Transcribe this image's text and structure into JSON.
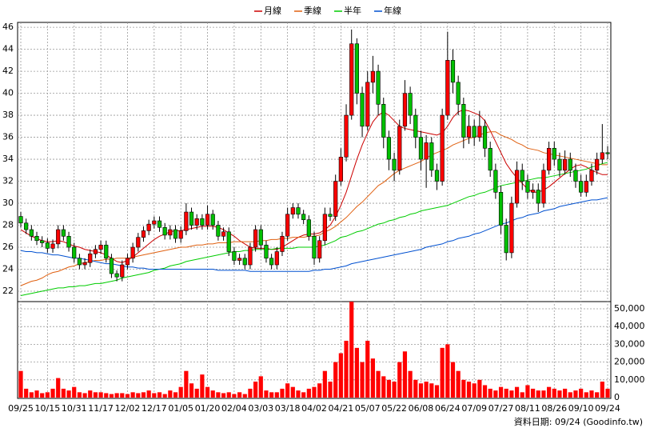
{
  "chart_data": [
    {
      "type": "candlestick",
      "up_color": "#ff0000",
      "down_color": "#00c000",
      "grid": true,
      "legend": "top",
      "ylim": [
        21.2,
        46.3
      ],
      "yticks": [
        22,
        24,
        26,
        28,
        30,
        32,
        34,
        36,
        38,
        40,
        42,
        44,
        46
      ],
      "open": [
        28.8,
        28.2,
        27.6,
        27.0,
        26.6,
        26.4,
        25.9,
        26.3,
        27.6,
        27.0,
        26.0,
        25.0,
        24.4,
        24.6,
        25.4,
        25.8,
        26.2,
        25.0,
        23.6,
        23.3,
        24.4,
        25.0,
        26.0,
        26.9,
        27.5,
        28.1,
        28.4,
        27.8,
        27.1,
        27.6,
        26.8,
        27.5,
        29.2,
        28.0,
        28.6,
        28.0,
        29.0,
        28.0,
        27.0,
        27.4,
        25.6,
        24.8,
        25.0,
        24.4,
        26.0,
        27.6,
        26.2,
        25.0,
        24.4,
        25.6,
        27.0,
        29.0,
        29.6,
        29.0,
        28.5,
        27.0,
        25.0,
        26.6,
        29.0,
        28.8,
        32.0,
        34.2,
        38.0,
        44.5,
        40.0,
        37.0,
        41.0,
        42.0,
        39.0,
        36.0,
        34.0,
        33.0,
        37.0,
        40.0,
        38.0,
        36.0,
        34.0,
        35.5,
        33.0,
        32.0,
        38.0,
        43.0,
        41.0,
        39.0,
        36.0,
        37.0,
        36.0,
        37.0,
        35.0,
        33.0,
        31.0,
        28.0,
        25.5,
        30.0,
        33.0,
        32.0,
        31.0,
        31.2,
        30.0,
        33.0,
        35.0,
        34.0,
        33.0,
        34.0,
        33.0,
        32.0,
        31.0,
        32.0,
        33.0,
        34.0,
        34.6
      ],
      "high": [
        29.2,
        28.6,
        28.0,
        27.4,
        27.0,
        26.8,
        26.7,
        28.0,
        28.0,
        27.4,
        26.4,
        25.4,
        25.0,
        25.8,
        26.2,
        26.6,
        26.6,
        25.4,
        23.9,
        24.8,
        25.4,
        26.4,
        27.3,
        27.9,
        28.5,
        28.8,
        28.8,
        28.2,
        28.0,
        28.0,
        27.9,
        30.0,
        29.6,
        29.0,
        29.0,
        29.8,
        29.4,
        28.4,
        27.8,
        27.8,
        26.0,
        25.4,
        25.4,
        26.4,
        28.0,
        28.0,
        26.6,
        25.4,
        26.0,
        27.4,
        29.6,
        30.0,
        30.0,
        29.4,
        28.9,
        27.4,
        27.0,
        29.6,
        29.6,
        32.6,
        35.0,
        39.0,
        45.8,
        45.0,
        40.6,
        42.0,
        43.4,
        42.6,
        39.6,
        36.6,
        34.6,
        37.6,
        41.2,
        40.6,
        38.6,
        36.6,
        36.2,
        36.0,
        33.6,
        38.6,
        45.6,
        44.0,
        41.6,
        39.6,
        38.0,
        37.6,
        38.4,
        37.6,
        35.6,
        33.6,
        31.6,
        28.6,
        30.6,
        33.8,
        33.6,
        32.6,
        31.8,
        31.8,
        33.6,
        35.6,
        35.6,
        34.6,
        34.8,
        34.6,
        33.6,
        32.6,
        32.6,
        33.6,
        34.6,
        37.2,
        35.2
      ],
      "low": [
        27.8,
        27.2,
        26.6,
        26.2,
        26.0,
        25.5,
        25.5,
        25.9,
        26.6,
        25.6,
        24.6,
        24.0,
        24.0,
        24.2,
        25.0,
        25.4,
        24.6,
        23.2,
        22.9,
        22.9,
        24.0,
        24.6,
        25.6,
        26.5,
        27.1,
        27.7,
        27.4,
        26.7,
        26.7,
        26.4,
        26.4,
        27.1,
        27.6,
        27.6,
        27.6,
        27.6,
        27.6,
        26.6,
        26.6,
        25.2,
        24.4,
        24.4,
        24.0,
        24.0,
        25.6,
        25.8,
        24.6,
        24.0,
        24.0,
        25.2,
        26.6,
        28.6,
        28.6,
        28.1,
        26.6,
        24.4,
        24.6,
        26.2,
        28.4,
        28.4,
        31.6,
        33.8,
        37.6,
        39.0,
        36.0,
        36.6,
        40.0,
        38.0,
        35.0,
        33.0,
        32.0,
        32.6,
        36.6,
        37.2,
        35.0,
        33.0,
        31.4,
        32.4,
        31.2,
        31.6,
        37.6,
        40.0,
        38.0,
        35.0,
        35.4,
        35.2,
        35.6,
        34.2,
        32.4,
        30.4,
        27.2,
        24.8,
        25.0,
        29.6,
        31.2,
        30.4,
        30.4,
        29.2,
        29.6,
        32.6,
        33.4,
        32.4,
        32.6,
        32.4,
        31.4,
        30.6,
        30.6,
        31.6,
        32.6,
        33.6,
        34.0
      ],
      "close": [
        28.2,
        27.6,
        27.0,
        26.6,
        26.4,
        25.9,
        26.3,
        27.6,
        27.0,
        26.0,
        25.0,
        24.4,
        24.6,
        25.4,
        25.8,
        26.2,
        25.0,
        23.6,
        23.3,
        24.4,
        25.0,
        26.0,
        26.9,
        27.5,
        28.1,
        28.4,
        27.8,
        27.1,
        27.6,
        26.8,
        27.5,
        29.2,
        28.0,
        28.6,
        28.0,
        29.0,
        28.0,
        27.0,
        27.4,
        25.6,
        24.8,
        25.0,
        24.4,
        26.0,
        27.6,
        26.2,
        25.0,
        24.4,
        25.6,
        27.0,
        29.0,
        29.6,
        29.0,
        28.5,
        27.0,
        25.0,
        26.6,
        29.0,
        28.8,
        32.0,
        34.2,
        38.0,
        44.5,
        40.0,
        37.0,
        41.0,
        42.0,
        39.0,
        36.0,
        34.0,
        33.0,
        37.0,
        40.0,
        38.0,
        36.0,
        34.0,
        35.5,
        33.0,
        32.0,
        38.0,
        43.0,
        41.0,
        39.0,
        36.0,
        37.0,
        36.0,
        37.0,
        35.0,
        33.0,
        31.0,
        28.0,
        25.5,
        30.0,
        33.0,
        32.0,
        31.0,
        31.2,
        30.0,
        33.0,
        35.0,
        34.0,
        33.0,
        34.0,
        33.0,
        32.0,
        31.0,
        32.0,
        33.0,
        34.0,
        34.6,
        34.5
      ],
      "series": [
        {
          "name": "月線",
          "color": "#cc0000",
          "values": [
            27.6,
            27.3,
            27.0,
            26.8,
            26.6,
            26.5,
            26.5,
            26.6,
            26.5,
            26.3,
            26.1,
            26.0,
            25.8,
            25.7,
            25.6,
            25.5,
            25.3,
            25.0,
            24.7,
            24.6,
            24.8,
            25.1,
            25.5,
            25.9,
            26.3,
            26.7,
            27.0,
            27.2,
            27.4,
            27.5,
            27.5,
            27.6,
            27.7,
            27.8,
            27.9,
            27.9,
            27.9,
            27.8,
            27.6,
            27.3,
            27.0,
            26.6,
            26.3,
            26.0,
            25.9,
            25.9,
            25.9,
            25.8,
            25.8,
            26.0,
            26.3,
            26.6,
            26.9,
            27.1,
            27.2,
            27.2,
            27.3,
            27.6,
            28.0,
            28.8,
            29.8,
            31.0,
            32.5,
            34.0,
            35.3,
            36.4,
            37.4,
            38.0,
            38.3,
            38.0,
            37.5,
            37.0,
            36.8,
            36.7,
            36.6,
            36.5,
            36.4,
            36.3,
            36.2,
            36.4,
            37.0,
            37.8,
            38.3,
            38.5,
            38.4,
            38.2,
            38.0,
            37.5,
            36.6,
            35.6,
            34.6,
            33.6,
            32.9,
            32.3,
            31.8,
            31.3,
            31.0,
            31.0,
            31.2,
            31.5,
            31.9,
            32.3,
            32.7,
            33.1,
            33.4,
            33.5,
            33.3,
            33.0,
            32.8,
            32.6,
            32.6
          ]
        },
        {
          "name": "季線",
          "color": "#e06010",
          "values": [
            22.5,
            22.7,
            22.9,
            23.0,
            23.2,
            23.5,
            23.7,
            23.8,
            24.0,
            24.2,
            24.3,
            24.5,
            24.6,
            24.7,
            24.8,
            24.8,
            24.9,
            24.9,
            25.0,
            25.0,
            25.0,
            25.1,
            25.2,
            25.3,
            25.4,
            25.5,
            25.6,
            25.7,
            25.8,
            25.9,
            26.0,
            26.0,
            26.1,
            26.2,
            26.2,
            26.3,
            26.3,
            26.4,
            26.4,
            26.4,
            26.5,
            26.5,
            26.5,
            26.5,
            26.5,
            26.6,
            26.6,
            26.7,
            26.7,
            26.8,
            26.8,
            26.9,
            26.9,
            26.9,
            27.0,
            27.0,
            27.1,
            27.4,
            27.6,
            27.9,
            28.3,
            28.7,
            29.2,
            29.7,
            30.1,
            30.6,
            31.1,
            31.6,
            31.9,
            32.3,
            32.7,
            33.0,
            33.2,
            33.4,
            33.6,
            33.8,
            34.1,
            34.4,
            34.6,
            34.8,
            35.0,
            35.3,
            35.5,
            35.7,
            35.9,
            36.0,
            36.2,
            36.4,
            36.5,
            36.5,
            36.2,
            36.0,
            35.8,
            35.5,
            35.3,
            35.0,
            34.9,
            34.8,
            34.6,
            34.5,
            34.4,
            34.3,
            34.2,
            34.1,
            34.0,
            33.9,
            33.8,
            33.7,
            33.6,
            33.5,
            33.5
          ]
        },
        {
          "name": "半年",
          "color": "#00cc00",
          "values": [
            21.6,
            21.7,
            21.8,
            21.9,
            22.0,
            22.1,
            22.2,
            22.3,
            22.3,
            22.4,
            22.4,
            22.5,
            22.5,
            22.6,
            22.7,
            22.7,
            22.8,
            22.9,
            23.0,
            23.2,
            23.3,
            23.4,
            23.5,
            23.6,
            23.7,
            23.9,
            24.0,
            24.1,
            24.3,
            24.4,
            24.5,
            24.7,
            24.8,
            24.9,
            25.0,
            25.1,
            25.2,
            25.3,
            25.4,
            25.5,
            25.6,
            25.6,
            25.7,
            25.7,
            25.8,
            25.8,
            25.8,
            25.8,
            25.9,
            25.9,
            25.9,
            25.9,
            26.0,
            26.0,
            26.0,
            26.0,
            26.1,
            26.2,
            26.4,
            26.6,
            26.9,
            27.0,
            27.2,
            27.4,
            27.5,
            27.7,
            27.9,
            28.1,
            28.2,
            28.4,
            28.5,
            28.7,
            28.8,
            29.0,
            29.1,
            29.3,
            29.4,
            29.5,
            29.6,
            29.7,
            29.8,
            30.0,
            30.2,
            30.4,
            30.6,
            30.7,
            30.9,
            31.0,
            31.2,
            31.4,
            31.6,
            31.7,
            31.8,
            31.9,
            32.0,
            32.1,
            32.2,
            32.3,
            32.3,
            32.4,
            32.5,
            32.6,
            32.7,
            32.8,
            32.9,
            33.0,
            33.1,
            33.3,
            33.4,
            33.6,
            33.7
          ]
        },
        {
          "name": "年線",
          "color": "#0050d0",
          "values": [
            25.7,
            25.6,
            25.6,
            25.5,
            25.5,
            25.4,
            25.3,
            25.3,
            25.2,
            25.1,
            25.0,
            25.0,
            24.9,
            24.8,
            24.7,
            24.6,
            24.5,
            24.5,
            24.4,
            24.3,
            24.2,
            24.2,
            24.1,
            24.1,
            24.0,
            24.0,
            24.0,
            24.0,
            24.0,
            24.0,
            24.0,
            24.0,
            24.0,
            24.0,
            24.0,
            24.0,
            24.0,
            23.9,
            23.9,
            23.9,
            23.9,
            23.9,
            23.9,
            23.8,
            23.8,
            23.8,
            23.8,
            23.8,
            23.8,
            23.8,
            23.8,
            23.8,
            23.8,
            23.8,
            23.8,
            23.9,
            23.9,
            24.0,
            24.0,
            24.1,
            24.2,
            24.3,
            24.5,
            24.6,
            24.7,
            24.8,
            24.9,
            25.0,
            25.1,
            25.2,
            25.3,
            25.4,
            25.5,
            25.6,
            25.7,
            25.8,
            26.0,
            26.1,
            26.2,
            26.3,
            26.5,
            26.6,
            26.8,
            26.9,
            27.0,
            27.2,
            27.3,
            27.5,
            27.7,
            27.9,
            28.1,
            28.2,
            28.4,
            28.6,
            28.7,
            28.9,
            29.0,
            29.1,
            29.3,
            29.4,
            29.5,
            29.7,
            29.8,
            29.9,
            30.0,
            30.1,
            30.2,
            30.3,
            30.3,
            30.4,
            30.5
          ]
        }
      ]
    },
    {
      "type": "bar",
      "color": "#ff0000",
      "grid": true,
      "ylim": [
        0,
        53600
      ],
      "yticks": [
        0,
        {
          "value": 10000,
          "label": "10,000"
        },
        {
          "value": 20000,
          "label": "20,000"
        },
        {
          "value": 30000,
          "label": "30,000"
        },
        {
          "value": 40000,
          "label": "40,000"
        },
        {
          "value": 50000,
          "label": "50,000"
        }
      ],
      "categories": [
        "09/25",
        null,
        null,
        null,
        null,
        "10/15",
        null,
        null,
        null,
        null,
        "10/31",
        null,
        null,
        null,
        null,
        "11/17",
        null,
        null,
        null,
        null,
        "12/02",
        null,
        null,
        null,
        null,
        "12/17",
        null,
        null,
        null,
        null,
        "01/05",
        null,
        null,
        null,
        null,
        "01/20",
        null,
        null,
        null,
        null,
        "02/04",
        null,
        null,
        null,
        null,
        "03/03",
        null,
        null,
        null,
        null,
        "03/18",
        null,
        null,
        null,
        null,
        "04/02",
        null,
        null,
        null,
        null,
        "04/21",
        null,
        null,
        null,
        null,
        "05/07",
        null,
        null,
        null,
        null,
        "05/22",
        null,
        null,
        null,
        null,
        "06/08",
        null,
        null,
        null,
        null,
        "06/24",
        null,
        null,
        null,
        null,
        "07/09",
        null,
        null,
        null,
        null,
        "07/27",
        null,
        null,
        null,
        null,
        "08/11",
        null,
        null,
        null,
        null,
        "08/26",
        null,
        null,
        null,
        null,
        "09/10",
        null,
        null,
        null,
        null,
        "09/24"
      ],
      "values": [
        15000,
        5000,
        3000,
        4000,
        2500,
        3000,
        5000,
        11000,
        5000,
        4000,
        6000,
        3000,
        2500,
        4000,
        3000,
        3000,
        2500,
        2000,
        2500,
        2500,
        2000,
        3000,
        2500,
        3000,
        4000,
        2500,
        3000,
        2000,
        4000,
        3000,
        6000,
        15000,
        8000,
        5000,
        13000,
        6000,
        4000,
        3000,
        2500,
        3000,
        2000,
        3000,
        2000,
        5000,
        9000,
        12000,
        4000,
        3000,
        3000,
        5000,
        8000,
        6000,
        4000,
        3000,
        5000,
        6000,
        8000,
        15000,
        9000,
        20000,
        25000,
        32000,
        54000,
        28000,
        20000,
        32000,
        22000,
        15000,
        12000,
        10000,
        9000,
        20000,
        26000,
        15000,
        10000,
        8000,
        9000,
        8000,
        7000,
        28000,
        30000,
        20000,
        15000,
        10000,
        9000,
        8000,
        10000,
        7000,
        5000,
        4000,
        6000,
        5000,
        4000,
        6000,
        3000,
        7000,
        5000,
        4000,
        4000,
        6000,
        5000,
        4000,
        5000,
        3000,
        4000,
        5000,
        3000,
        4000,
        3000,
        9000,
        5000
      ]
    }
  ],
  "footer": "資料日期: 09/24 (Goodinfo.tw)"
}
